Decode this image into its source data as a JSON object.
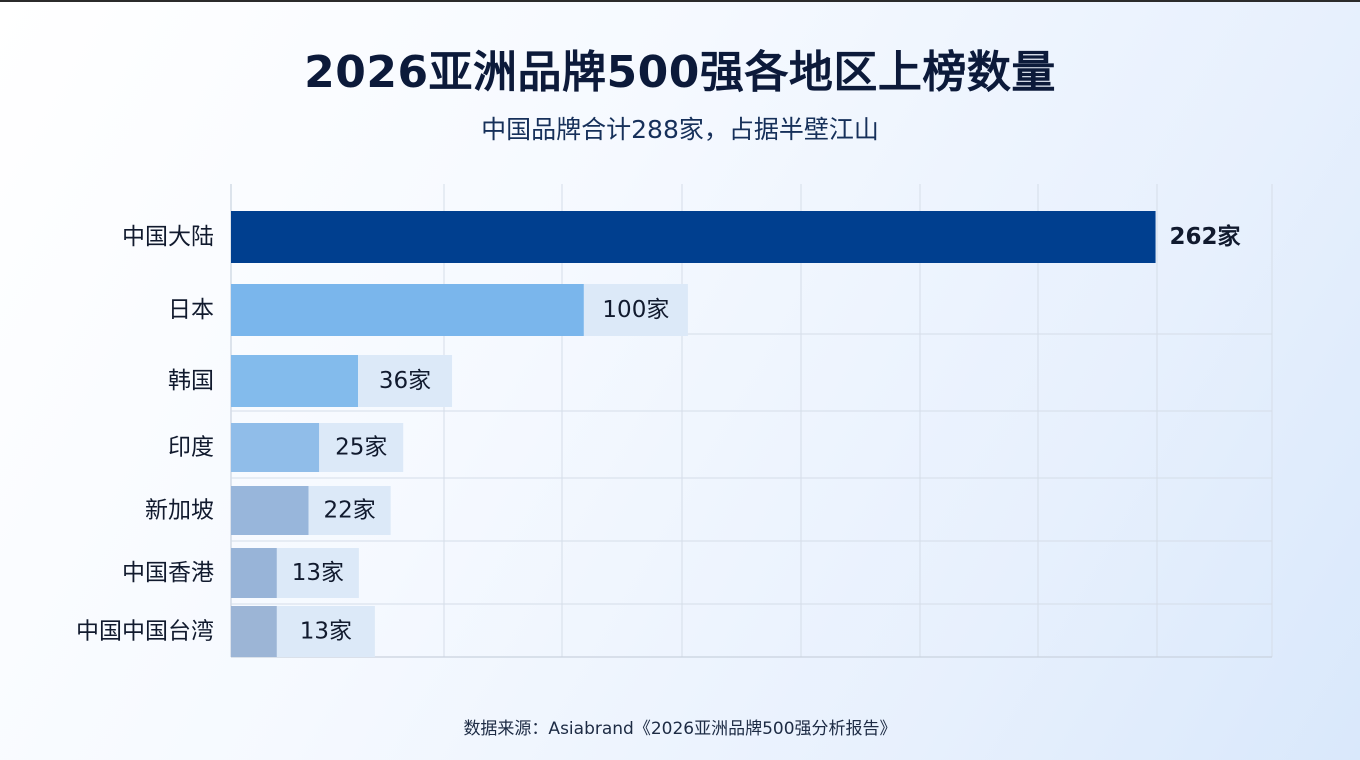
{
  "header": {
    "title": "2026亚洲品牌500强各地区上榜数量",
    "subtitle": "中国品牌合计288家，占据半壁江山"
  },
  "footer": {
    "source": "数据来源：Asiabrand《2026亚洲品牌500强分析报告》"
  },
  "colors": {
    "primary_bar": "#003f8f",
    "light_bars": [
      "#7ab6ec",
      "#83bbec",
      "#90bde9",
      "#98b6db",
      "#98b4d8",
      "#9cb5d6"
    ],
    "label_bg": "#dce9f8",
    "grid": "#d5dde8"
  },
  "chart_data": {
    "type": "bar",
    "orientation": "horizontal",
    "title": "2026亚洲品牌500强各地区上榜数量",
    "subtitle": "中国品牌合计288家，占据半壁江山",
    "categories": [
      "中国大陆",
      "日本",
      "韩国",
      "印度",
      "新加坡",
      "中国香港",
      "中国中国台湾"
    ],
    "values": [
      262,
      100,
      36,
      25,
      22,
      13,
      13
    ],
    "value_labels": [
      "262家",
      "100家",
      "36家",
      "25家",
      "22家",
      "13家",
      "13家"
    ],
    "unit": "家",
    "xlim": [
      0,
      295
    ],
    "grid": true,
    "legend": "none"
  }
}
